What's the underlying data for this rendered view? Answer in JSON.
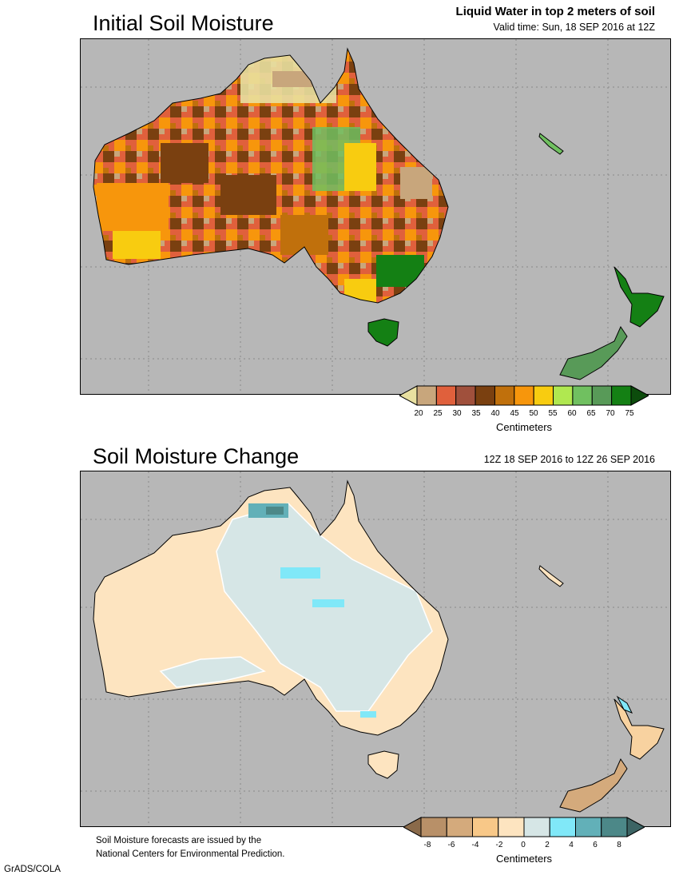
{
  "top_panel": {
    "title": "Initial Soil Moisture",
    "subtitle_main": "Liquid Water in top 2 meters of soil",
    "subtitle_valid": "Valid time: Sun, 18 SEP 2016 at 12Z",
    "colorbar": {
      "ticks": [
        "20",
        "25",
        "30",
        "35",
        "40",
        "45",
        "50",
        "55",
        "60",
        "65",
        "70",
        "75"
      ],
      "colors": [
        "#e8e0a0",
        "#c8a67c",
        "#e0603c",
        "#a0503c",
        "#7a4010",
        "#c0700c",
        "#f7960c",
        "#f8cc10",
        "#b0e850",
        "#70c060",
        "#589a58",
        "#148014",
        "#0c4c0c"
      ],
      "unit_label": "Centimeters"
    }
  },
  "bottom_panel": {
    "title": "Soil Moisture Change",
    "subtitle_range": "12Z 18 SEP 2016 to 12Z 26 SEP 2016",
    "colorbar": {
      "ticks": [
        "-8",
        "-6",
        "-4",
        "-2",
        "0",
        "2",
        "4",
        "6",
        "8"
      ],
      "colors": [
        "#8a6a4a",
        "#b89068",
        "#d4aa7c",
        "#f8c888",
        "#fde4c0",
        "#d6e6e6",
        "#80e8f8",
        "#62b0b8",
        "#4c8888",
        "#3c6464"
      ],
      "unit_label": "Centimeters"
    }
  },
  "footnote": {
    "line1": "Soil Moisture forecasts are issued by the",
    "line2": "National Centers for Environmental Prediction."
  },
  "credit": "GrADS/COLA"
}
